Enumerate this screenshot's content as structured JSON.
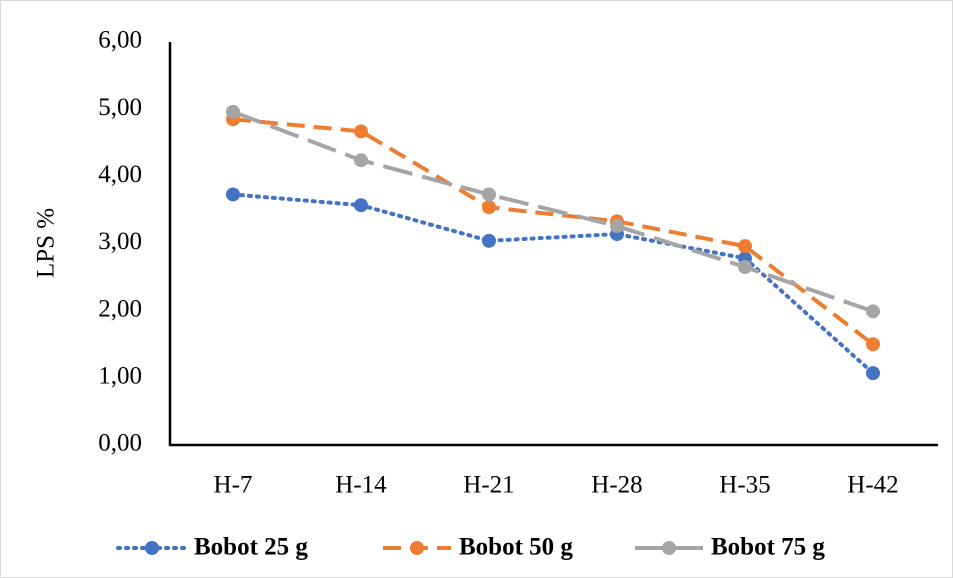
{
  "chart_data": {
    "type": "line",
    "y_label": "LPS %",
    "categories": [
      "H-7",
      "H-14",
      "H-21",
      "H-28",
      "H-35",
      "H-42"
    ],
    "series": [
      {
        "name": "Bobot 25 g",
        "color": "#4472c4",
        "dash": "dotted",
        "values": [
          3.73,
          3.57,
          3.04,
          3.14,
          2.78,
          1.07
        ]
      },
      {
        "name": "Bobot 50 g",
        "color": "#ed7d31",
        "dash": "dashed",
        "values": [
          4.85,
          4.67,
          3.54,
          3.33,
          2.96,
          1.5
        ]
      },
      {
        "name": "Bobot 75 g",
        "color": "#a5a5a5",
        "dash": "longdash",
        "values": [
          4.96,
          4.24,
          3.73,
          3.26,
          2.65,
          1.99
        ]
      }
    ],
    "ylim": [
      0,
      6
    ],
    "yticks": [
      {
        "value": 0,
        "label": "0,00"
      },
      {
        "value": 1,
        "label": "1,00"
      },
      {
        "value": 2,
        "label": "2,00"
      },
      {
        "value": 3,
        "label": "3,00"
      },
      {
        "value": 4,
        "label": "4,00"
      },
      {
        "value": 5,
        "label": "5,00"
      },
      {
        "value": 6,
        "label": "6,00"
      }
    ],
    "grid": false,
    "legend": "bottom"
  }
}
